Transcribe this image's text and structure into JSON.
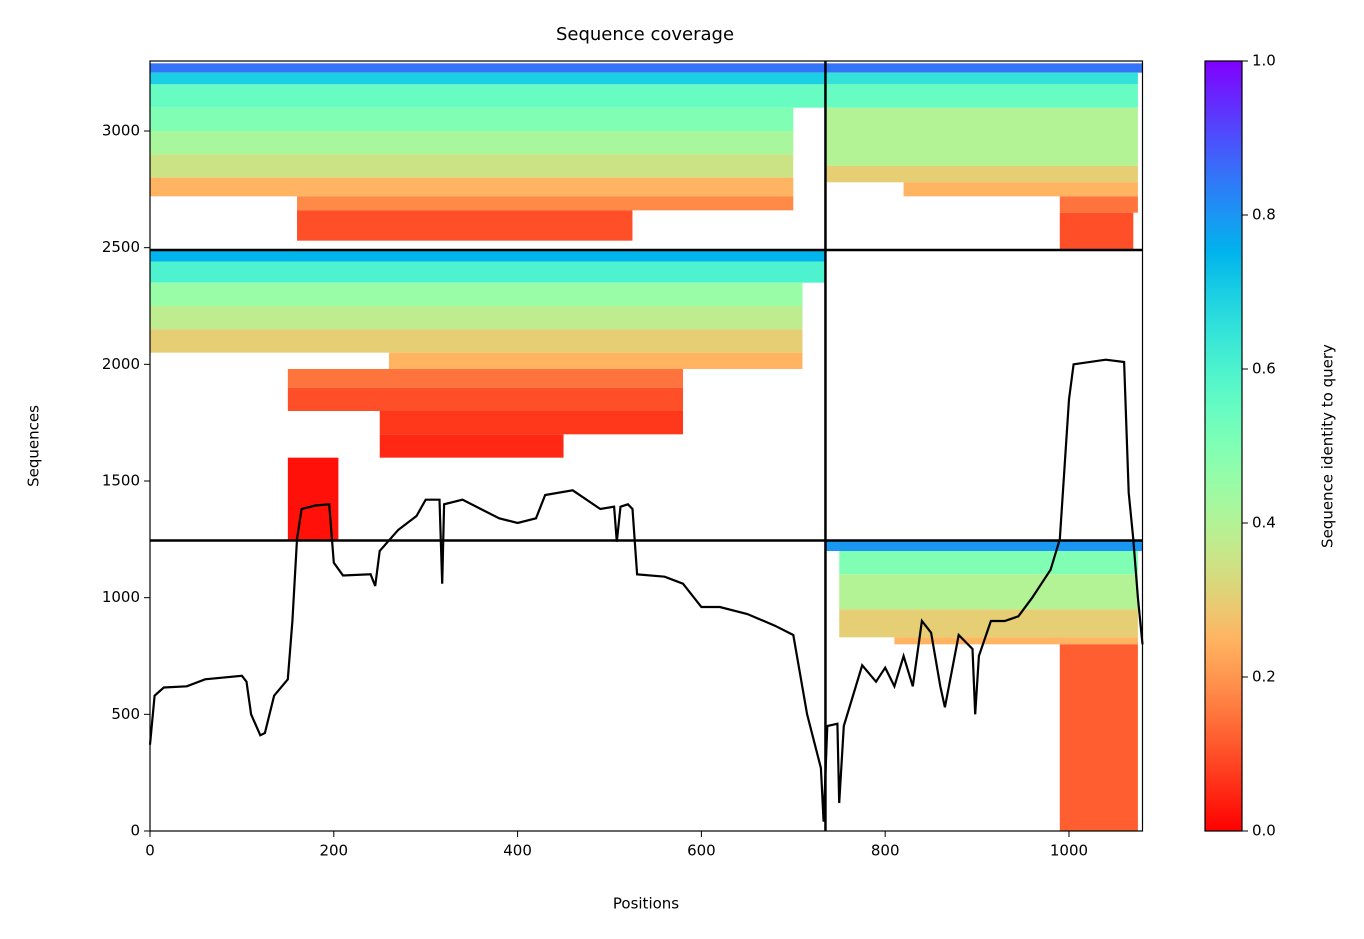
{
  "chart_data": {
    "type": "coverage",
    "title": "Sequence coverage",
    "x_label": "Positions",
    "y_label": "Sequences",
    "colorbar_label": "Sequence identity to query",
    "xlim": [
      0,
      1080
    ],
    "ylim": [
      0,
      3300
    ],
    "xticks": [
      0,
      200,
      400,
      600,
      800,
      1000
    ],
    "yticks": [
      0,
      500,
      1000,
      1500,
      2000,
      2500,
      3000
    ],
    "clim": [
      0,
      1
    ],
    "cticks": [
      {
        "value": 0,
        "label": "0.0"
      },
      {
        "value": 0.2,
        "label": "0.2"
      },
      {
        "value": 0.4,
        "label": "0.4"
      },
      {
        "value": 0.6,
        "label": "0.6"
      },
      {
        "value": 0.8,
        "label": "0.8"
      },
      {
        "value": 1,
        "label": "1.0"
      }
    ],
    "colormap": "rainbow_r",
    "line_color": "#000000",
    "blocks": [
      {
        "x": [
          0,
          735
        ],
        "y": [
          3250,
          3290
        ],
        "identity": 0.85
      },
      {
        "x": [
          0,
          735
        ],
        "y": [
          3200,
          3250
        ],
        "identity": 0.7
      },
      {
        "x": [
          0,
          735
        ],
        "y": [
          3100,
          3200
        ],
        "identity": 0.55
      },
      {
        "x": [
          0,
          700
        ],
        "y": [
          3000,
          3100
        ],
        "identity": 0.5
      },
      {
        "x": [
          0,
          700
        ],
        "y": [
          2900,
          3000
        ],
        "identity": 0.42
      },
      {
        "x": [
          0,
          700
        ],
        "y": [
          2800,
          2900
        ],
        "identity": 0.35
      },
      {
        "x": [
          0,
          700
        ],
        "y": [
          2720,
          2800
        ],
        "identity": 0.25
      },
      {
        "x": [
          160,
          700
        ],
        "y": [
          2660,
          2720
        ],
        "identity": 0.18
      },
      {
        "x": [
          160,
          525
        ],
        "y": [
          2530,
          2660
        ],
        "identity": 0.1
      },
      {
        "x": [
          735,
          1080
        ],
        "y": [
          3250,
          3290
        ],
        "identity": 0.85
      },
      {
        "x": [
          735,
          1075
        ],
        "y": [
          3200,
          3250
        ],
        "identity": 0.65
      },
      {
        "x": [
          735,
          1075
        ],
        "y": [
          3100,
          3200
        ],
        "identity": 0.55
      },
      {
        "x": [
          735,
          1075
        ],
        "y": [
          2850,
          3100
        ],
        "identity": 0.4
      },
      {
        "x": [
          735,
          1075
        ],
        "y": [
          2780,
          2850
        ],
        "identity": 0.3
      },
      {
        "x": [
          820,
          1075
        ],
        "y": [
          2720,
          2780
        ],
        "identity": 0.25
      },
      {
        "x": [
          990,
          1075
        ],
        "y": [
          2650,
          2720
        ],
        "identity": 0.15
      },
      {
        "x": [
          990,
          1070
        ],
        "y": [
          2490,
          2650
        ],
        "identity": 0.1
      },
      {
        "x": [
          0,
          735
        ],
        "y": [
          2440,
          2490
        ],
        "identity": 0.75
      },
      {
        "x": [
          0,
          735
        ],
        "y": [
          2350,
          2440
        ],
        "identity": 0.6
      },
      {
        "x": [
          0,
          710
        ],
        "y": [
          2250,
          2350
        ],
        "identity": 0.45
      },
      {
        "x": [
          0,
          710
        ],
        "y": [
          2150,
          2250
        ],
        "identity": 0.38
      },
      {
        "x": [
          0,
          710
        ],
        "y": [
          2050,
          2150
        ],
        "identity": 0.3
      },
      {
        "x": [
          260,
          710
        ],
        "y": [
          1980,
          2050
        ],
        "identity": 0.25
      },
      {
        "x": [
          150,
          580
        ],
        "y": [
          1900,
          1980
        ],
        "identity": 0.15
      },
      {
        "x": [
          150,
          580
        ],
        "y": [
          1800,
          1900
        ],
        "identity": 0.1
      },
      {
        "x": [
          250,
          580
        ],
        "y": [
          1700,
          1800
        ],
        "identity": 0.07
      },
      {
        "x": [
          250,
          450
        ],
        "y": [
          1600,
          1700
        ],
        "identity": 0.05
      },
      {
        "x": [
          150,
          205
        ],
        "y": [
          1245,
          1600
        ],
        "identity": 0.02
      },
      {
        "x": [
          735,
          1080
        ],
        "y": [
          1200,
          1245
        ],
        "identity": 0.8
      },
      {
        "x": [
          750,
          1075
        ],
        "y": [
          1100,
          1200
        ],
        "identity": 0.5
      },
      {
        "x": [
          750,
          1075
        ],
        "y": [
          950,
          1100
        ],
        "identity": 0.4
      },
      {
        "x": [
          750,
          1075
        ],
        "y": [
          830,
          950
        ],
        "identity": 0.3
      },
      {
        "x": [
          810,
          1075
        ],
        "y": [
          800,
          830
        ],
        "identity": 0.25
      },
      {
        "x": [
          990,
          1075
        ],
        "y": [
          0,
          800
        ],
        "identity": 0.12
      }
    ],
    "dividers": {
      "x": [
        735
      ],
      "y": [
        1245,
        2490
      ]
    },
    "coverage": {
      "x": [
        0,
        5,
        15,
        40,
        60,
        100,
        105,
        110,
        120,
        125,
        135,
        150,
        155,
        160,
        165,
        180,
        195,
        200,
        210,
        240,
        245,
        250,
        270,
        290,
        300,
        315,
        318,
        320,
        340,
        360,
        380,
        400,
        420,
        430,
        460,
        490,
        505,
        508,
        512,
        520,
        525,
        530,
        560,
        580,
        600,
        620,
        650,
        680,
        700,
        715,
        730,
        733,
        737,
        748,
        750,
        755,
        775,
        790,
        800,
        810,
        820,
        830,
        840,
        850,
        860,
        865,
        880,
        895,
        898,
        902,
        915,
        930,
        945,
        960,
        980,
        990,
        1000,
        1005,
        1040,
        1060,
        1065,
        1070,
        1075,
        1080
      ],
      "values": [
        370,
        580,
        615,
        620,
        650,
        665,
        640,
        500,
        410,
        420,
        580,
        650,
        900,
        1250,
        1380,
        1395,
        1400,
        1150,
        1095,
        1100,
        1050,
        1200,
        1290,
        1350,
        1420,
        1420,
        1060,
        1400,
        1420,
        1380,
        1340,
        1320,
        1340,
        1440,
        1460,
        1380,
        1390,
        1240,
        1390,
        1400,
        1380,
        1100,
        1090,
        1060,
        960,
        960,
        930,
        880,
        840,
        500,
        270,
        40,
        450,
        460,
        120,
        450,
        710,
        640,
        700,
        620,
        750,
        620,
        900,
        850,
        620,
        530,
        840,
        780,
        500,
        750,
        900,
        900,
        920,
        1000,
        1120,
        1250,
        1850,
        2000,
        2020,
        2010,
        1450,
        1250,
        1000,
        800
      ]
    }
  }
}
